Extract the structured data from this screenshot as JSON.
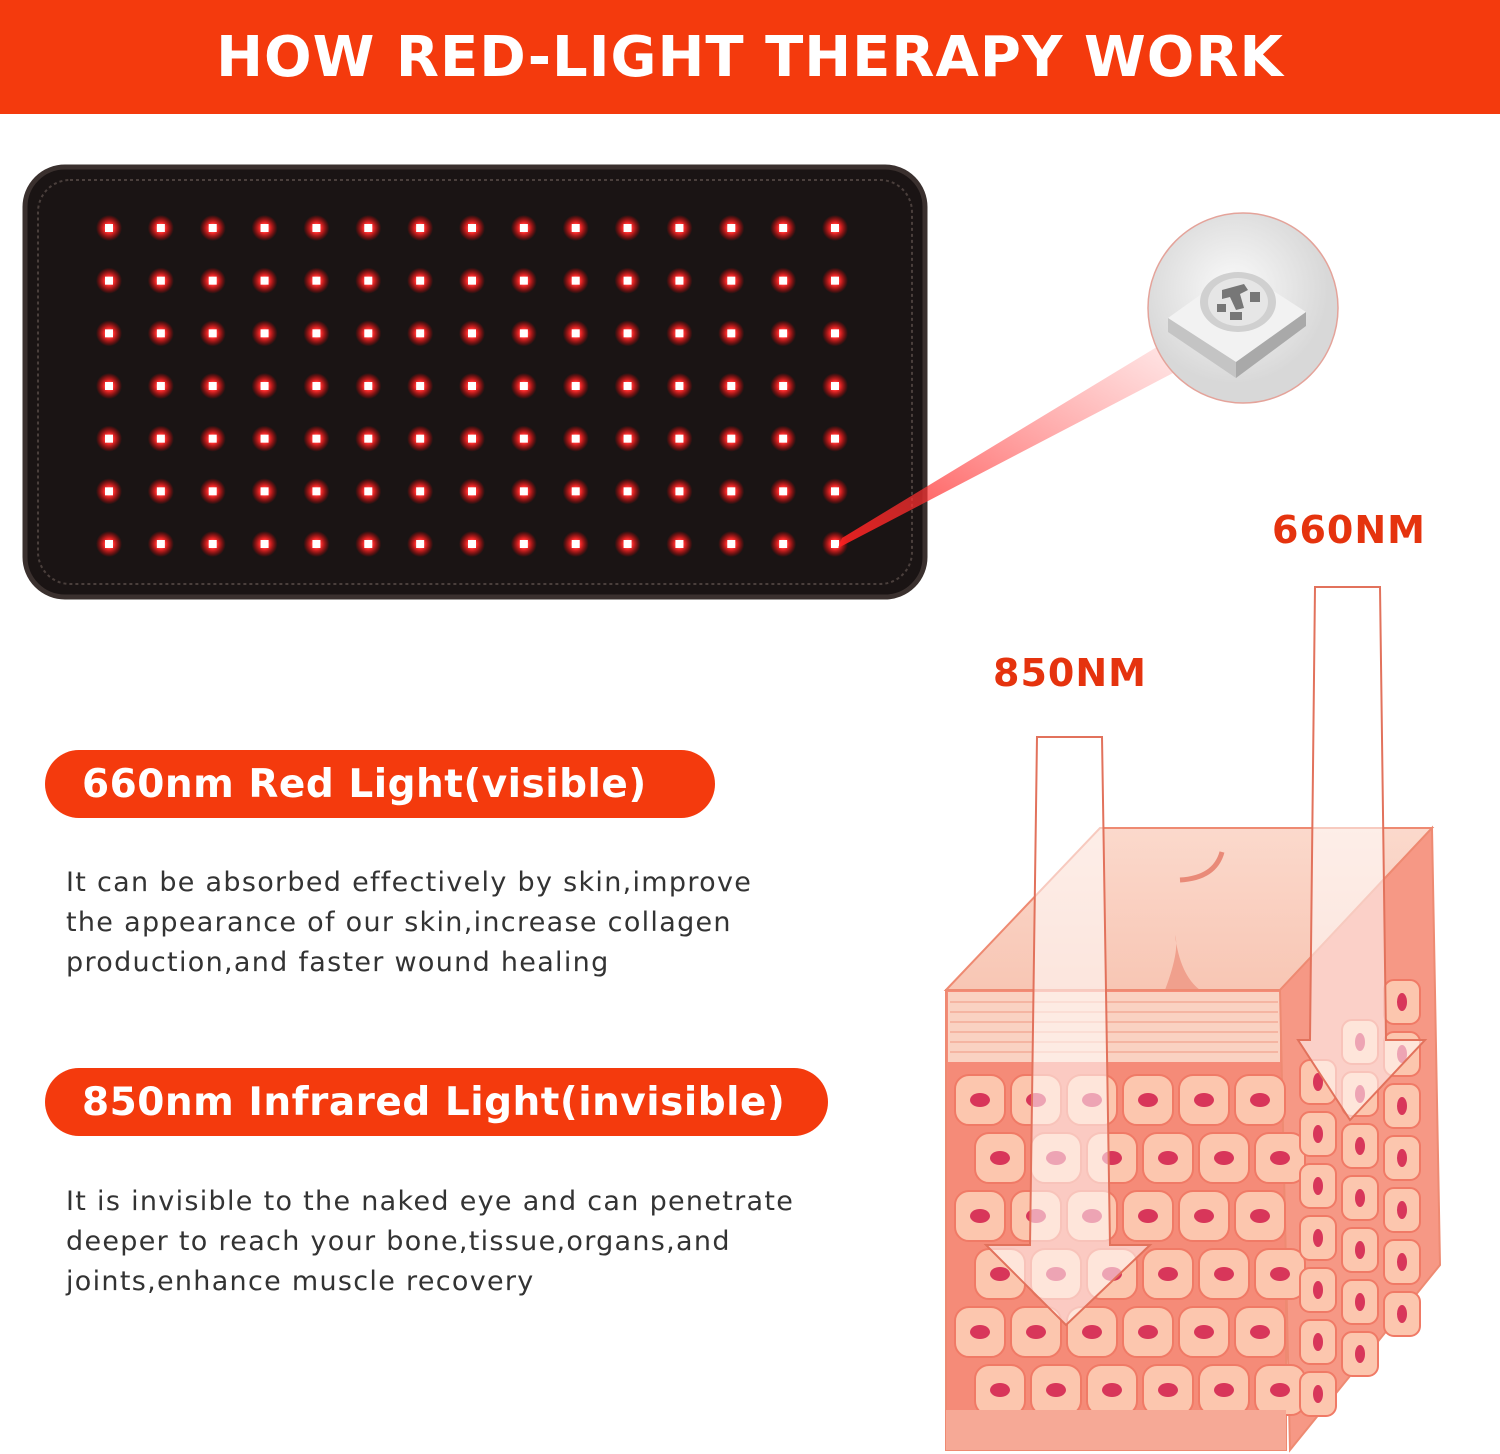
{
  "header": {
    "title": "HOW RED-LIGHT THERAPY WORK"
  },
  "colors": {
    "accent": "#f43a0d",
    "label": "#e5330e",
    "led": "#ff1a1a",
    "pad": "#1a1414",
    "skin": "#f7b9a4"
  },
  "device": {
    "led_rows": 7,
    "led_columns": 15,
    "icon": "led-chip-icon"
  },
  "wavelength_labels": {
    "red": "660NM",
    "infrared": "850NM"
  },
  "sections": [
    {
      "title": "660nm Red Light(visible)",
      "lines": [
        "It can be absorbed effectively by skin,improve",
        "the appearance of our skin,increase collagen",
        "production,and faster wound healing"
      ]
    },
    {
      "title": "850nm Infrared Light(invisible)",
      "lines": [
        "It is invisible to the naked eye and can penetrate",
        "deeper to reach your bone,tissue,organs,and",
        "joints,enhance muscle recovery"
      ]
    }
  ]
}
